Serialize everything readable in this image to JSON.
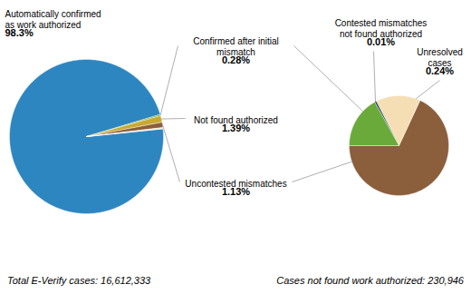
{
  "chart_data": [
    {
      "type": "pie",
      "categories": [
        "Automatically confirmed\nas work authorized",
        "Confirmed after initial\nmismatch",
        "Not found authorized",
        "Uncontested mismatches",
        null,
        null
      ],
      "values": [
        98.3,
        0.28,
        1.39,
        1.13,
        0.24,
        0.01
      ],
      "value_labels": [
        "98.3%",
        "0.28%",
        "1.39%",
        "1.13%",
        null,
        null
      ],
      "colors": [
        "#2e86c1",
        "#6aaa3a",
        "#c8a830",
        "#8B5E3C",
        "#F5DEB3",
        "#1a3a5c"
      ],
      "data_labels": true,
      "annotations": [
        "Total E-Verify cases: 16,612,333",
        "Cases not found work authorized: 230,946"
      ]
    },
    {
      "type": "pie",
      "categories": [
        "Uncontested mismatches",
        "Unresolved\ncases",
        "Contested mismatches\nnot found authorized",
        "Confirmed after initial\nmismatch"
      ],
      "values": [
        1.13,
        0.24,
        0.01,
        0.28
      ],
      "value_labels": [
        "1.13%",
        "0.24%",
        "0.01%",
        "0.28%"
      ],
      "colors": [
        "#8B5E3C",
        "#F5DEB3",
        "#1a3a5c",
        "#6aaa3a"
      ],
      "data_labels": true
    }
  ]
}
